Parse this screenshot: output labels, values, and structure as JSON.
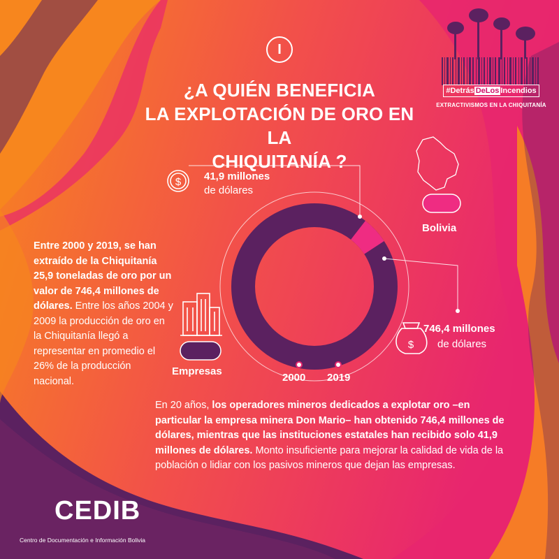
{
  "header": {
    "numeral": "I",
    "title_lines": [
      "¿A QUIÉN BENEFICIA",
      "LA EXPLOTACIÓN DE ORO EN LA",
      "CHIQUITANÍA ?"
    ],
    "hashtag_prefix": "#Detrás",
    "hashtag_mid": "DeLos",
    "hashtag_suffix": "Incendios",
    "subtag": "EXTRACTIVISMOS EN LA CHIQUITANÍA"
  },
  "chart": {
    "state_value": "41,9 millones",
    "state_unit": "de dólares",
    "company_value": "746,4 millones",
    "company_unit": "de dólares",
    "legend_bolivia": "Bolivia",
    "legend_empresas": "Empresas",
    "year_start": "2000",
    "year_end": "2019",
    "shares": {
      "bolivia": 41.9,
      "empresas": 746.4
    }
  },
  "left_text": {
    "bold": "Entre 2000 y 2019, se han extraído de la Chiquitanía 25,9 toneladas de oro por un valor de 746,4 millones de dólares.",
    "normal": " Entre los años 2004 y 2009 la producción de oro en la Chiquitanía llegó a representar en promedio el 26% de la producción nacional."
  },
  "bottom_text": {
    "part1": "En 20 años, ",
    "part2": "los operadores mineros dedicados a explotar oro –en particular la empresa minera Don Mario– han obtenido 746,4 millones de dólares, mientras que las instituciones estatales han recibido solo 41,9 millones de dólares.",
    "part3": " Monto insuficiente para mejorar la calidad de vida de la población o lidiar con los pasivos mineros que dejan las empresas."
  },
  "logo": {
    "name": "CEDIB",
    "subtitle": "Centro de Documentación e Información Bolivia"
  },
  "colors": {
    "orange": "#f7861e",
    "magenta": "#e8266e",
    "purple": "#5b2160",
    "pink": "#ef2c82",
    "teal": "#1ab3b8"
  },
  "icons": [
    "dollar-coin-icon",
    "money-bag-icon",
    "buildings-icon",
    "forest-barcode-icon",
    "bolivia-map-icon"
  ]
}
